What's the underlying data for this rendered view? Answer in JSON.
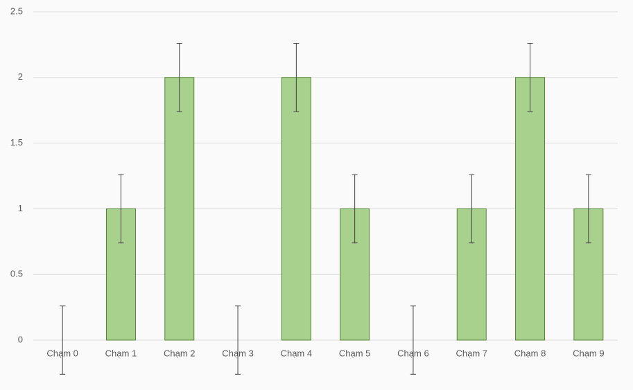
{
  "chart_data": {
    "type": "bar",
    "categories": [
      "Chạm 0",
      "Chạm 1",
      "Chạm 2",
      "Chạm 3",
      "Chạm 4",
      "Chạm 5",
      "Chạm 6",
      "Chạm 7",
      "Chạm 8",
      "Chạm 9"
    ],
    "values": [
      0,
      1,
      2,
      0,
      2,
      1,
      0,
      1,
      2,
      1
    ],
    "errors": [
      0.26,
      0.26,
      0.26,
      0.26,
      0.26,
      0.26,
      0.26,
      0.26,
      0.26,
      0.26
    ],
    "color": "#a9d18e",
    "edgecolor": "#548235",
    "errorcolor": "#404040",
    "ylim": [
      0,
      2.5
    ],
    "yticks": [
      0,
      0.5,
      1,
      1.5,
      2,
      2.5
    ],
    "grid": true
  }
}
